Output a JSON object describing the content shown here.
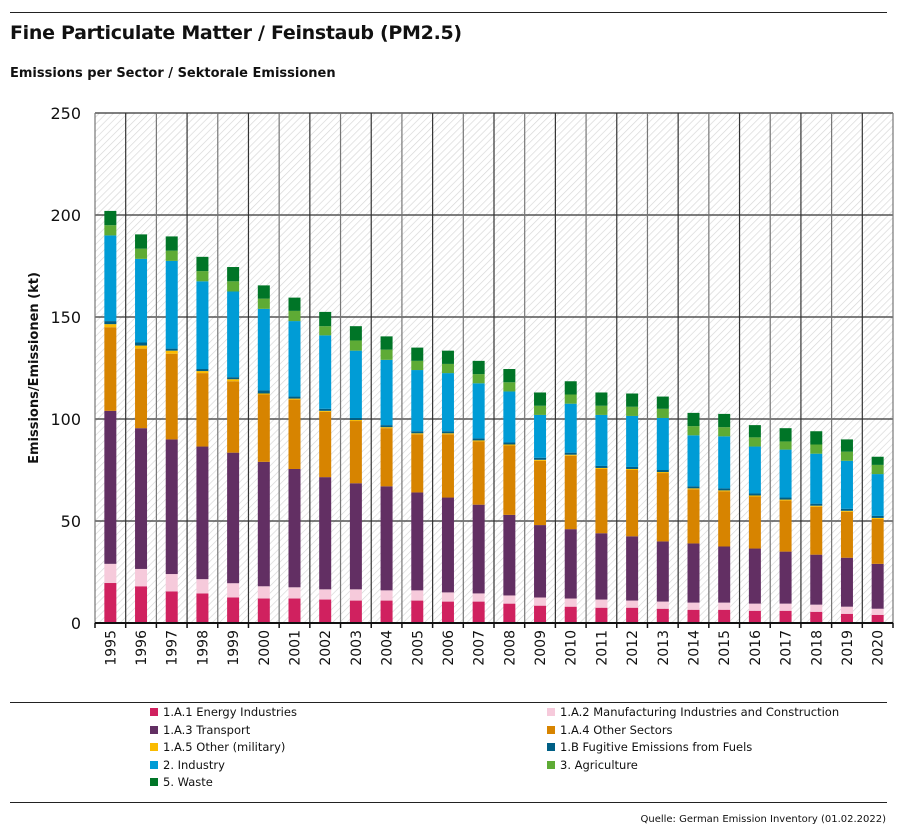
{
  "header": {
    "title": "Fine Particulate Matter / Feinstaub (PM2.5)",
    "subtitle": "Emissions per Sector / Sektorale Emissionen"
  },
  "source": "Quelle: German Emission Inventory (01.02.2022)",
  "chart_data": {
    "type": "bar",
    "stacked": true,
    "ylabel": "Emissions/Emissionen (kt)",
    "ylim": [
      0,
      250
    ],
    "yticks": [
      0,
      50,
      100,
      150,
      200,
      250
    ],
    "grid": true,
    "legend_position": "bottom",
    "categories": [
      "1995",
      "1996",
      "1997",
      "1998",
      "1999",
      "2000",
      "2001",
      "2002",
      "2003",
      "2004",
      "2005",
      "2006",
      "2007",
      "2008",
      "2009",
      "2010",
      "2011",
      "2012",
      "2013",
      "2014",
      "2015",
      "2016",
      "2017",
      "2018",
      "2019",
      "2020"
    ],
    "series": [
      {
        "name": "1.A.1 Energy Industries",
        "color": "#d0215f",
        "values": [
          19.6,
          18,
          15.5,
          14.5,
          12.5,
          12,
          12,
          11.5,
          11,
          11,
          11,
          10.5,
          10.5,
          9.5,
          8.5,
          8,
          7.5,
          7.5,
          7,
          6.5,
          6.5,
          6,
          6,
          5.5,
          4.5,
          4
        ]
      },
      {
        "name": "1.A.2 Manufacturing Industries and Construction",
        "color": "#f6cadb",
        "values": [
          9.4,
          8.5,
          8.5,
          7,
          7,
          6,
          5.5,
          5,
          5.5,
          5,
          5,
          4.5,
          4,
          4,
          4,
          4,
          4,
          3.5,
          3.5,
          3.5,
          3.5,
          3.5,
          3.5,
          3.5,
          3.5,
          3
        ]
      },
      {
        "name": "1.A.3 Transport",
        "color": "#622f63",
        "values": [
          75,
          69,
          66,
          65,
          64,
          61,
          58,
          55,
          52,
          51,
          48,
          46.5,
          43.5,
          39.5,
          35.5,
          34,
          32.5,
          31.5,
          29.5,
          29,
          27.5,
          27,
          25.5,
          24.5,
          24,
          22
        ]
      },
      {
        "name": "1.A.4 Other Sectors",
        "color": "#d78400",
        "values": [
          41,
          39,
          42,
          36,
          35,
          33,
          34,
          32,
          30.5,
          28.5,
          28.5,
          31,
          31,
          34,
          31.5,
          36,
          31.5,
          32.5,
          33.5,
          26.5,
          27,
          25.5,
          25,
          23.5,
          22.5,
          22
        ]
      },
      {
        "name": "1.A.5 Other (military)",
        "color": "#fabb00",
        "values": [
          1.5,
          1.5,
          1.5,
          1,
          1,
          0.5,
          0.5,
          0.5,
          0.5,
          0.5,
          0.5,
          0.5,
          0.5,
          0.5,
          0.5,
          0.5,
          0.5,
          0.5,
          0.5,
          0.5,
          0.5,
          0.5,
          0.5,
          0.5,
          0.5,
          0.5
        ]
      },
      {
        "name": "1.B Fugitive Emissions from Fuels",
        "color": "#005f85",
        "values": [
          1.5,
          1.5,
          1,
          1,
          1,
          1.5,
          1,
          1,
          1,
          1,
          1,
          1,
          1,
          1,
          1,
          1,
          1,
          1,
          1,
          1,
          1,
          1,
          1,
          1,
          1,
          1
        ]
      },
      {
        "name": "2. Industry",
        "color": "#009cd6",
        "values": [
          42,
          41,
          43,
          43,
          42,
          40,
          37,
          36,
          33,
          32,
          30,
          28.5,
          27,
          25,
          21,
          24,
          25,
          25,
          25.5,
          25,
          25.5,
          23,
          23.5,
          24.5,
          23.5,
          20.5
        ]
      },
      {
        "name": "3. Agriculture",
        "color": "#5eab35",
        "values": [
          5,
          5,
          5,
          5,
          5,
          5,
          5,
          4.5,
          5,
          5,
          4.5,
          4.5,
          4.5,
          4.5,
          4.5,
          4.5,
          4.5,
          4.5,
          4.5,
          4.5,
          4.5,
          4.5,
          4,
          4.5,
          4.5,
          4.5
        ]
      },
      {
        "name": "5. Waste",
        "color": "#007527",
        "values": [
          7,
          7,
          7,
          7,
          7,
          6.5,
          6.5,
          7,
          7,
          6.5,
          6.5,
          6.5,
          6.5,
          6.5,
          6.5,
          6.5,
          6.5,
          6.5,
          6,
          6.5,
          6.5,
          6,
          6.5,
          6.5,
          6,
          4
        ]
      }
    ]
  }
}
